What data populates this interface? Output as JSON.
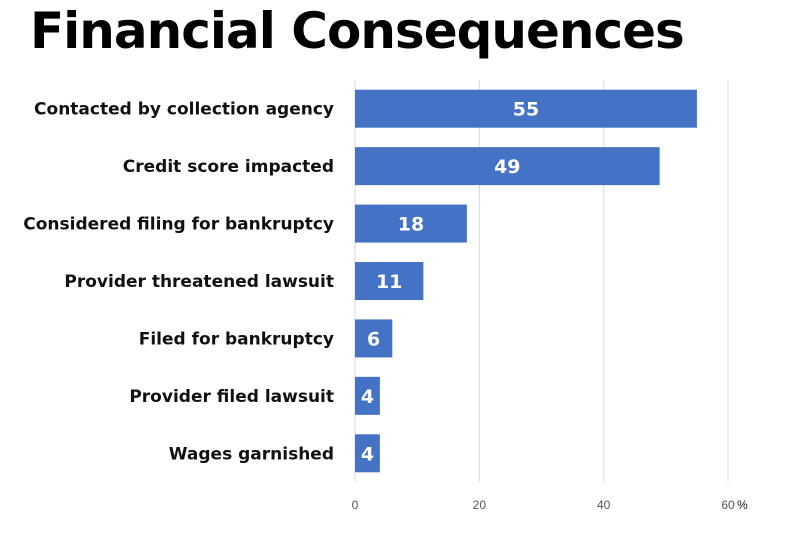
{
  "chart_data": {
    "type": "bar",
    "orientation": "horizontal",
    "title": "Financial Consequences",
    "categories": [
      "Contacted by collection agency",
      "Credit score impacted",
      "Considered filing for bankruptcy",
      "Provider threatened lawsuit",
      "Filed for bankruptcy",
      "Provider filed lawsuit",
      "Wages garnished"
    ],
    "values": [
      55,
      49,
      18,
      11,
      6,
      4,
      4
    ],
    "data_labels": [
      "55",
      "49",
      "18",
      "11",
      "6",
      "4",
      "4"
    ],
    "xlim": [
      0,
      60
    ],
    "x_ticks": [
      "0",
      "20",
      "40",
      "60"
    ],
    "x_unit": "%",
    "bar_color": "#4472c4",
    "grid": "vertical"
  }
}
